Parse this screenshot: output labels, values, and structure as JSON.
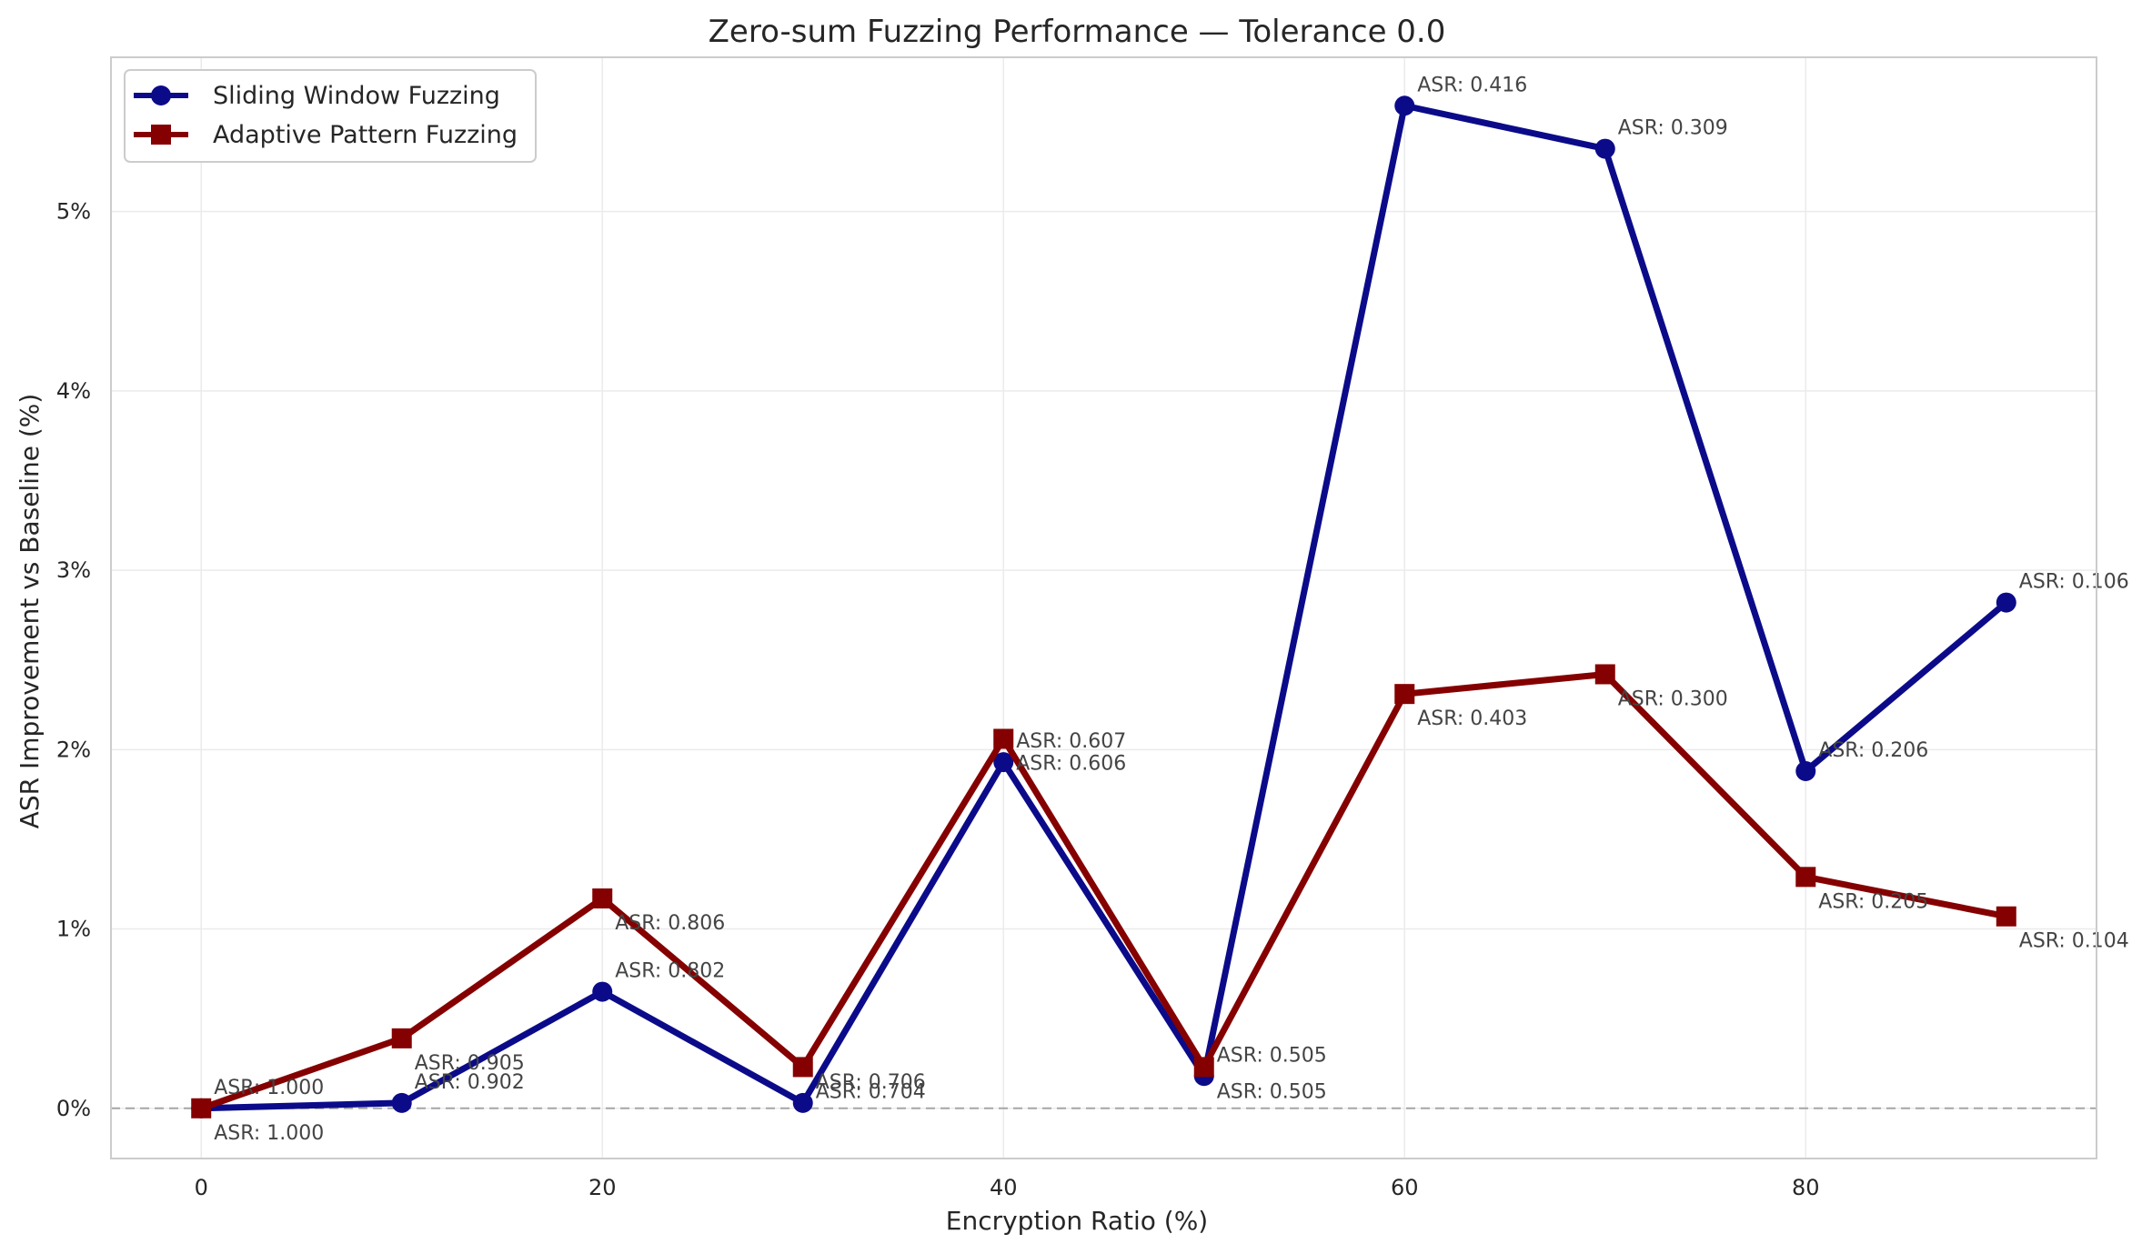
{
  "chart_data": {
    "type": "line",
    "title": "Zero-sum Fuzzing Performance — Tolerance 0.0",
    "xlabel": "Encryption Ratio (%)",
    "ylabel": "ASR Improvement vs Baseline (%)",
    "x": [
      0,
      10,
      20,
      30,
      40,
      50,
      60,
      70,
      80,
      90
    ],
    "xlim": [
      -4.5,
      94.5
    ],
    "ylim": [
      -0.28,
      5.86
    ],
    "xticks": [
      0,
      20,
      40,
      60,
      80
    ],
    "xtick_labels": [
      "0",
      "20",
      "40",
      "60",
      "80"
    ],
    "yticks": [
      0,
      1,
      2,
      3,
      4,
      5
    ],
    "ytick_labels": [
      "0%",
      "1%",
      "2%",
      "3%",
      "4%",
      "5%"
    ],
    "grid": true,
    "legend_position": "top-left",
    "baseline": 0,
    "series": [
      {
        "name": "Sliding Window Fuzzing",
        "color": "#0b0b8a",
        "marker": "circle",
        "values": [
          0.0,
          0.03,
          0.65,
          0.03,
          1.93,
          0.18,
          5.59,
          5.35,
          1.88,
          2.82
        ],
        "annotations": [
          "ASR: 1.000",
          "ASR: 0.902",
          "ASR: 0.802",
          "ASR: 0.706",
          "ASR: 0.607",
          "ASR: 0.505",
          "ASR: 0.416",
          "ASR: 0.309",
          "ASR: 0.206",
          "ASR: 0.106"
        ]
      },
      {
        "name": "Adaptive Pattern Fuzzing",
        "color": "#850000",
        "marker": "square",
        "values": [
          0.0,
          0.39,
          1.17,
          0.23,
          2.06,
          0.23,
          2.31,
          2.42,
          1.29,
          1.07
        ],
        "annotations": [
          "ASR: 1.000",
          "ASR: 0.905",
          "ASR: 0.806",
          "ASR: 0.704",
          "ASR: 0.606",
          "ASR: 0.505",
          "ASR: 0.403",
          "ASR: 0.300",
          "ASR: 0.205",
          "ASR: 0.104"
        ]
      }
    ]
  }
}
